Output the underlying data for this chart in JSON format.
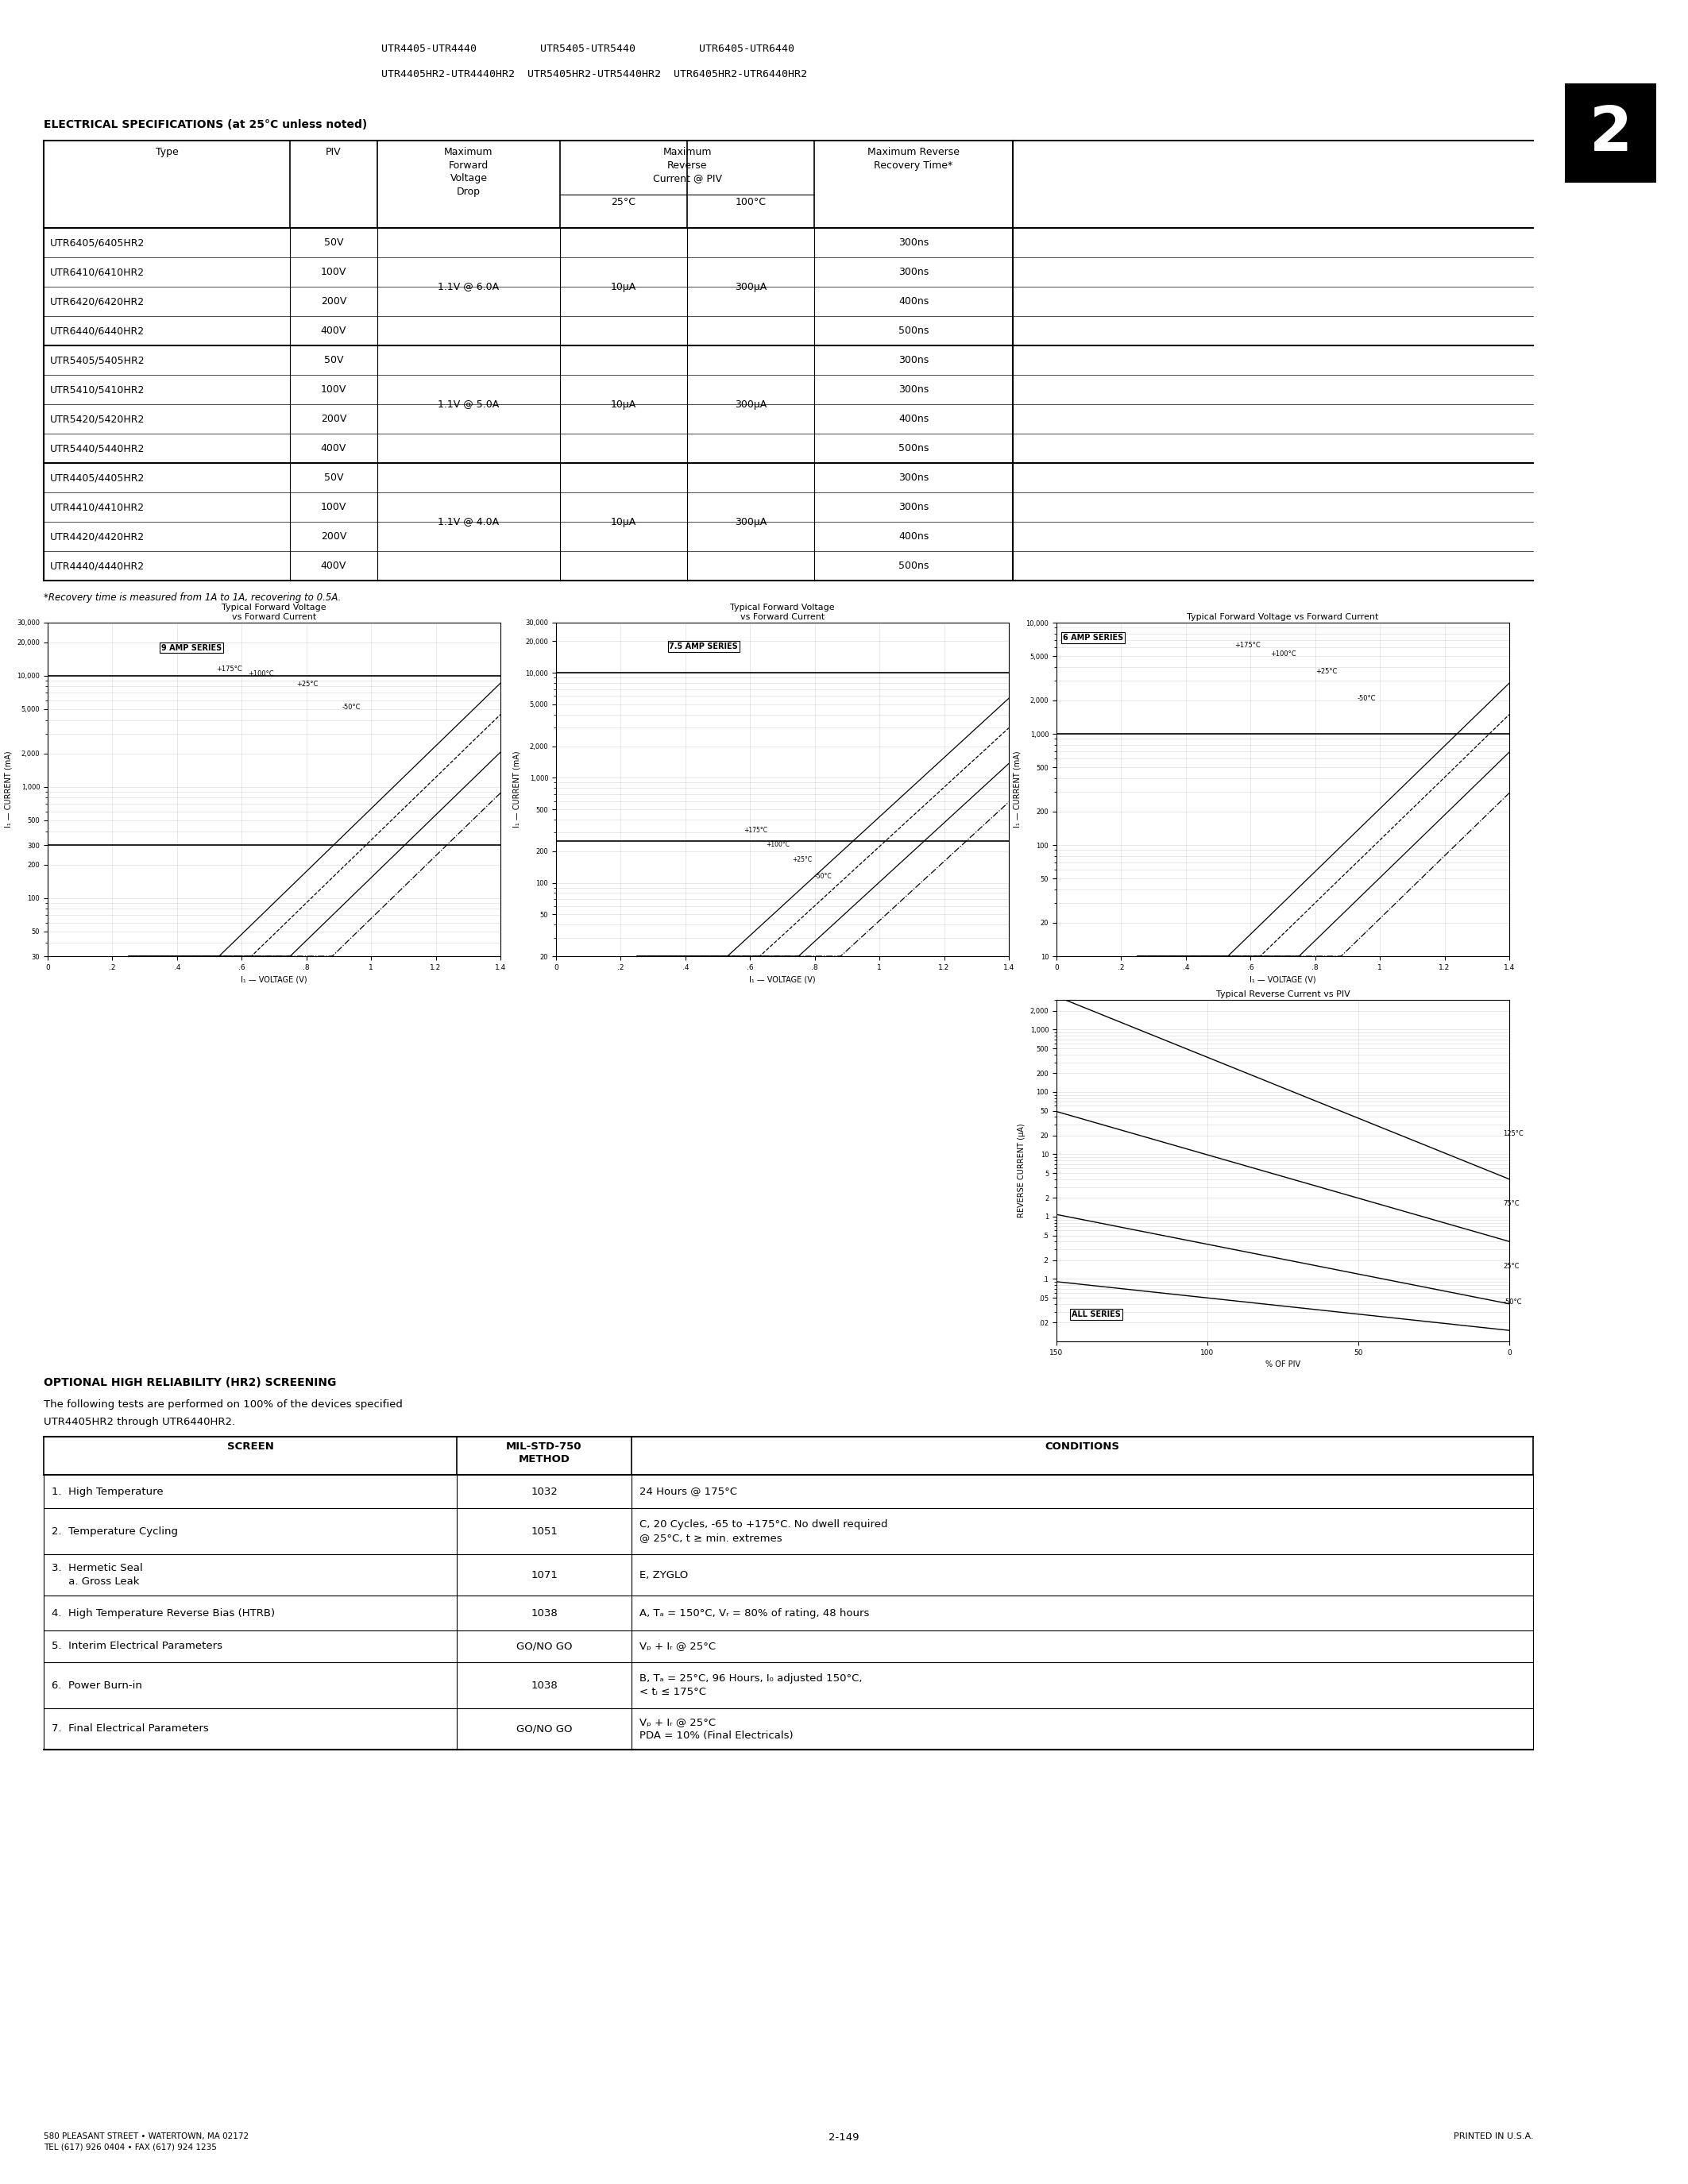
{
  "page_title_lines": [
    "UTR4405-UTR4440          UTR5405-UTR5440          UTR6405-UTR6440",
    "UTR4405HR2-UTR4440HR2  UTR5405HR2-UTR5440HR2  UTR6405HR2-UTR6440HR2"
  ],
  "section_badge": "2",
  "elec_spec_title": "ELECTRICAL SPECIFICATIONS (at 25°C unless noted)",
  "table_rows": [
    [
      "UTR6405/6405HR2",
      "50V",
      "1.1V @ 6.0A",
      "10μA",
      "300μA",
      "300ns"
    ],
    [
      "UTR6410/6410HR2",
      "100V",
      "1.1V @ 6.0A",
      "10μA",
      "300μA",
      "300ns"
    ],
    [
      "UTR6420/6420HR2",
      "200V",
      "1.1V @ 6.0A",
      "10μA",
      "300μA",
      "400ns"
    ],
    [
      "UTR6440/6440HR2",
      "400V",
      "1.1V @ 6.0A",
      "10μA",
      "300μA",
      "500ns"
    ],
    [
      "UTR5405/5405HR2",
      "50V",
      "1.1V @ 5.0A",
      "10μA",
      "300μA",
      "300ns"
    ],
    [
      "UTR5410/5410HR2",
      "100V",
      "1.1V @ 5.0A",
      "10μA",
      "300μA",
      "300ns"
    ],
    [
      "UTR5420/5420HR2",
      "200V",
      "1.1V @ 5.0A",
      "10μA",
      "300μA",
      "400ns"
    ],
    [
      "UTR5440/5440HR2",
      "400V",
      "1.1V @ 5.0A",
      "10μA",
      "300μA",
      "500ns"
    ],
    [
      "UTR4405/4405HR2",
      "50V",
      "1.1V @ 4.0A",
      "10μA",
      "300μA",
      "300ns"
    ],
    [
      "UTR4410/4410HR2",
      "100V",
      "1.1V @ 4.0A",
      "10μA",
      "300μA",
      "300ns"
    ],
    [
      "UTR4420/4420HR2",
      "200V",
      "1.1V @ 4.0A",
      "10μA",
      "300μA",
      "400ns"
    ],
    [
      "UTR4440/4440HR2",
      "400V",
      "1.1V @ 4.0A",
      "10μA",
      "300μA",
      "500ns"
    ]
  ],
  "table_footnote": "*Recovery time is measured from 1A to 1A, recovering to 0.5A.",
  "optional_title": "OPTIONAL HIGH RELIABILITY (HR2) SCREENING",
  "optional_subtitle1": "The following tests are performed on 100% of the devices specified",
  "optional_subtitle2": "UTR4405HR2 through UTR6440HR2.",
  "screen_table_rows": [
    [
      "1.  High Temperature",
      "1032",
      "24 Hours @ 175°C"
    ],
    [
      "2.  Temperature Cycling",
      "1051",
      "C, 20 Cycles, -65 to +175°C. No dwell required\n@ 25°C, t ≥ min. extremes"
    ],
    [
      "3.  Hermetic Seal\n     a. Gross Leak",
      "1071",
      "E, ZYGLO"
    ],
    [
      "4.  High Temperature Reverse Bias (HTRB)",
      "1038",
      "A, Tₐ = 150°C, Vᵣ = 80% of rating, 48 hours"
    ],
    [
      "5.  Interim Electrical Parameters",
      "GO/NO GO",
      "Vₚ + Iᵣ @ 25°C"
    ],
    [
      "6.  Power Burn-in",
      "1038",
      "B, Tₐ = 25°C, 96 Hours, I₀ adjusted 150°C,\n< tᵢ ≤ 175°C"
    ],
    [
      "7.  Final Electrical Parameters",
      "GO/NO GO",
      "Vₚ + Iᵣ @ 25°C\nPDA = 10% (Final Electricals)"
    ]
  ],
  "footer_left": "580 PLEASANT STREET • WATERTOWN, MA 02172\nTEL (617) 926 0404 • FAX (617) 924 1235",
  "footer_center": "2-149",
  "footer_right": "PRINTED IN U.S.A."
}
